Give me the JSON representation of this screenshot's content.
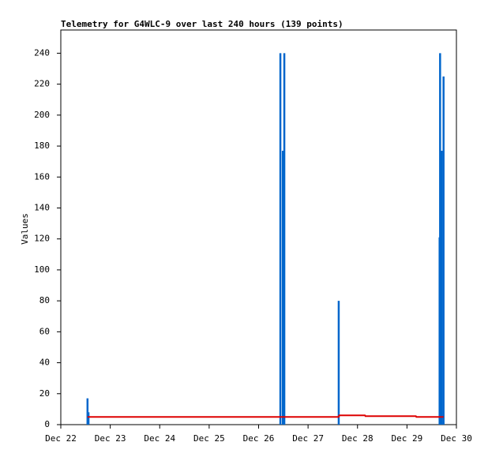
{
  "chart_data": {
    "type": "line",
    "title": "Telemetry for G4WLC-9 over last 240 hours (139 points)",
    "ylabel": "Values",
    "xlim": [
      22,
      30
    ],
    "xticks": [
      {
        "value": 22,
        "label": "Dec 22"
      },
      {
        "value": 23,
        "label": "Dec 23"
      },
      {
        "value": 24,
        "label": "Dec 24"
      },
      {
        "value": 25,
        "label": "Dec 25"
      },
      {
        "value": 26,
        "label": "Dec 26"
      },
      {
        "value": 27,
        "label": "Dec 27"
      },
      {
        "value": 28,
        "label": "Dec 28"
      },
      {
        "value": 29,
        "label": "Dec 29"
      },
      {
        "value": 30,
        "label": "Dec 30"
      }
    ],
    "ylim": [
      0,
      255
    ],
    "yticks": [
      0,
      20,
      40,
      60,
      80,
      100,
      120,
      140,
      160,
      180,
      200,
      220,
      240
    ],
    "series": [
      {
        "type": "impulse",
        "color": "#0066cc",
        "x": [
          22.54,
          22.56,
          26.44,
          26.49,
          26.52,
          27.62,
          29.66,
          29.67,
          29.7,
          29.74
        ],
        "values": [
          17,
          8,
          240,
          177,
          240,
          80,
          121,
          240,
          177,
          225
        ]
      },
      {
        "type": "line",
        "color": "#dd0000",
        "x": [
          22.54,
          27.62,
          27.63,
          28.15,
          28.16,
          29.18,
          29.19,
          29.74
        ],
        "values": [
          5,
          5,
          6,
          6,
          5.5,
          5.5,
          5,
          5
        ]
      }
    ]
  }
}
